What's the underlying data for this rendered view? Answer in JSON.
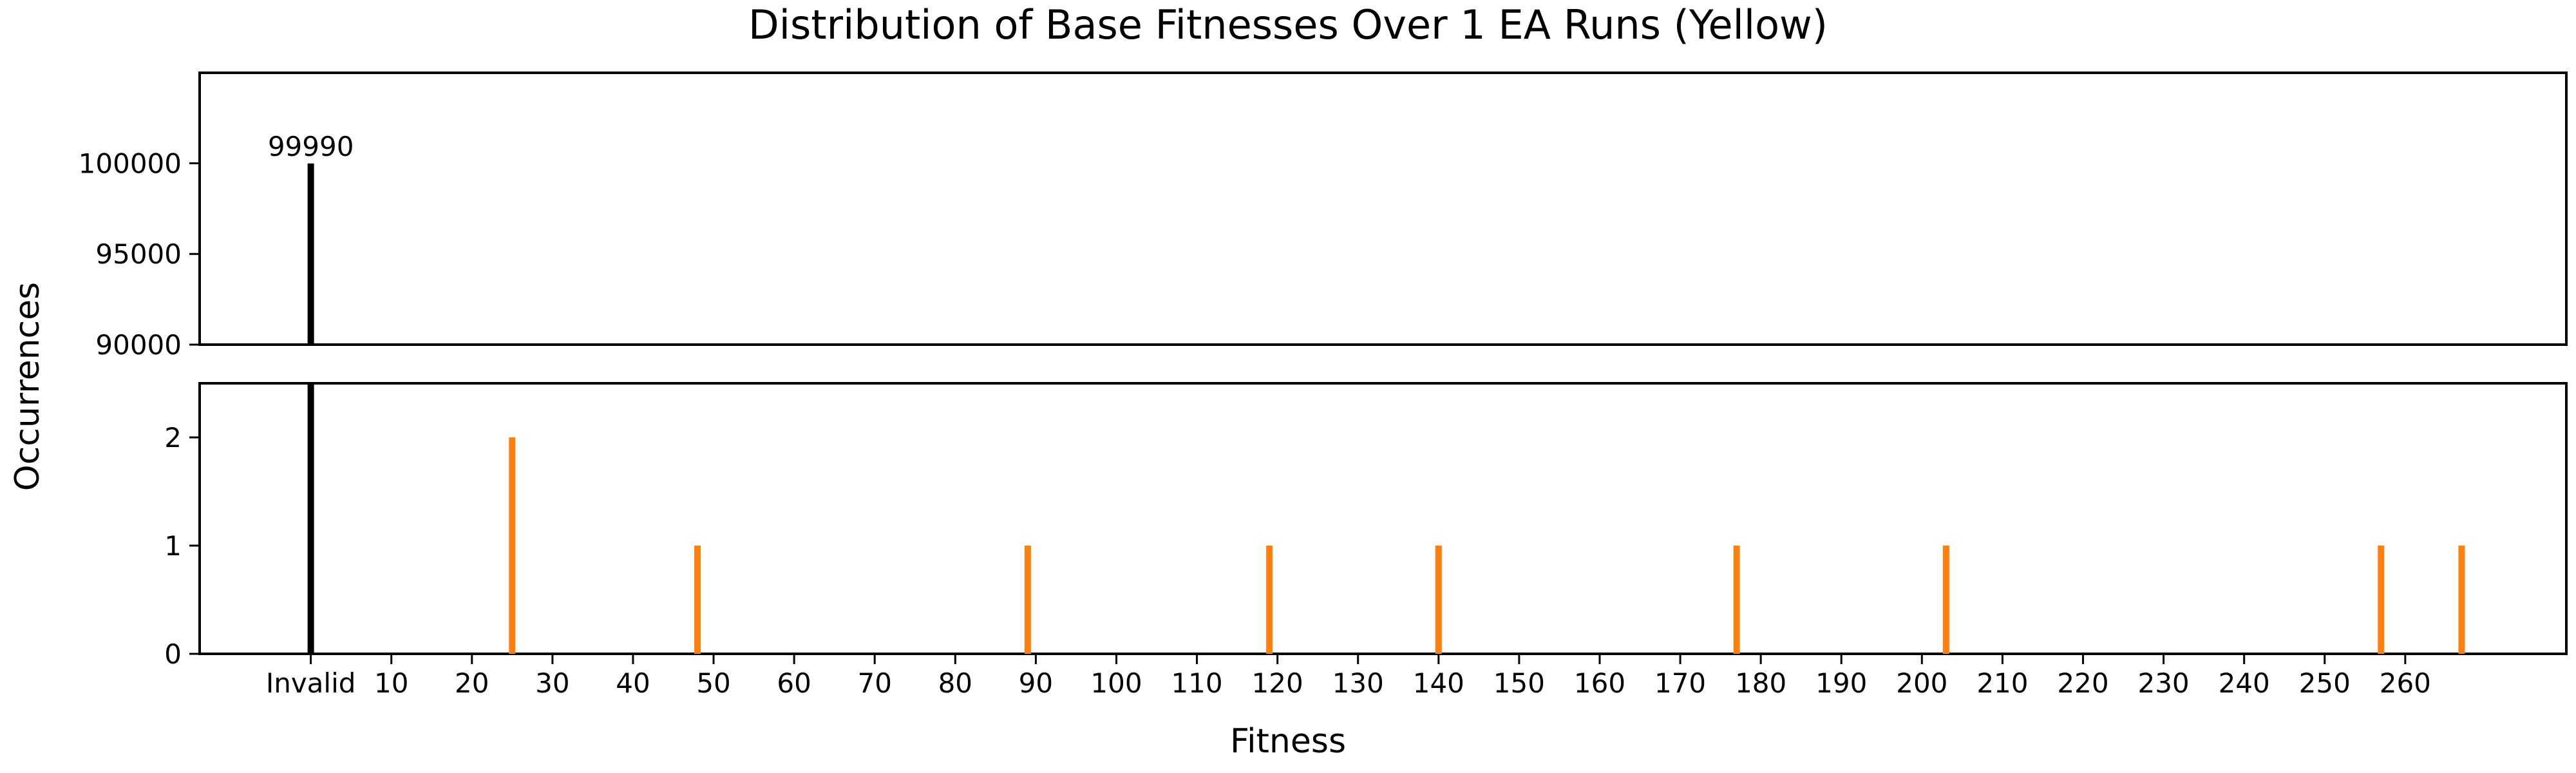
{
  "chart_data": {
    "type": "bar",
    "title": "Distribution of Base Fitnesses Over 1 EA Runs (Yellow)",
    "xlabel": "Fitness",
    "ylabel": "Occurrences",
    "xlim": [
      -13.8,
      280
    ],
    "x_ticks": [
      {
        "value": 0,
        "label": "Invalid"
      },
      {
        "value": 10,
        "label": "10"
      },
      {
        "value": 20,
        "label": "20"
      },
      {
        "value": 30,
        "label": "30"
      },
      {
        "value": 40,
        "label": "40"
      },
      {
        "value": 50,
        "label": "50"
      },
      {
        "value": 60,
        "label": "60"
      },
      {
        "value": 70,
        "label": "70"
      },
      {
        "value": 80,
        "label": "80"
      },
      {
        "value": 90,
        "label": "90"
      },
      {
        "value": 100,
        "label": "100"
      },
      {
        "value": 110,
        "label": "110"
      },
      {
        "value": 120,
        "label": "120"
      },
      {
        "value": 130,
        "label": "130"
      },
      {
        "value": 140,
        "label": "140"
      },
      {
        "value": 150,
        "label": "150"
      },
      {
        "value": 160,
        "label": "160"
      },
      {
        "value": 170,
        "label": "170"
      },
      {
        "value": 180,
        "label": "180"
      },
      {
        "value": 190,
        "label": "190"
      },
      {
        "value": 200,
        "label": "200"
      },
      {
        "value": 210,
        "label": "210"
      },
      {
        "value": 220,
        "label": "220"
      },
      {
        "value": 230,
        "label": "230"
      },
      {
        "value": 240,
        "label": "240"
      },
      {
        "value": 250,
        "label": "250"
      },
      {
        "value": 260,
        "label": "260"
      }
    ],
    "broken_axis": {
      "upper": {
        "ylim": [
          90000,
          104990
        ],
        "yticks": [
          90000,
          95000,
          100000
        ]
      },
      "lower": {
        "ylim": [
          0,
          2.5
        ],
        "yticks": [
          0,
          1,
          2
        ]
      }
    },
    "invalid_bar": {
      "x": 0,
      "value": 99990,
      "label": "99990",
      "color": "#000000"
    },
    "bars": {
      "color": "#ff7f0e",
      "x": [
        25,
        48,
        89,
        119,
        140,
        177,
        203,
        257,
        267
      ],
      "values": [
        2,
        1,
        1,
        1,
        1,
        1,
        1,
        1,
        1
      ]
    },
    "grid": false,
    "legend": "none"
  }
}
